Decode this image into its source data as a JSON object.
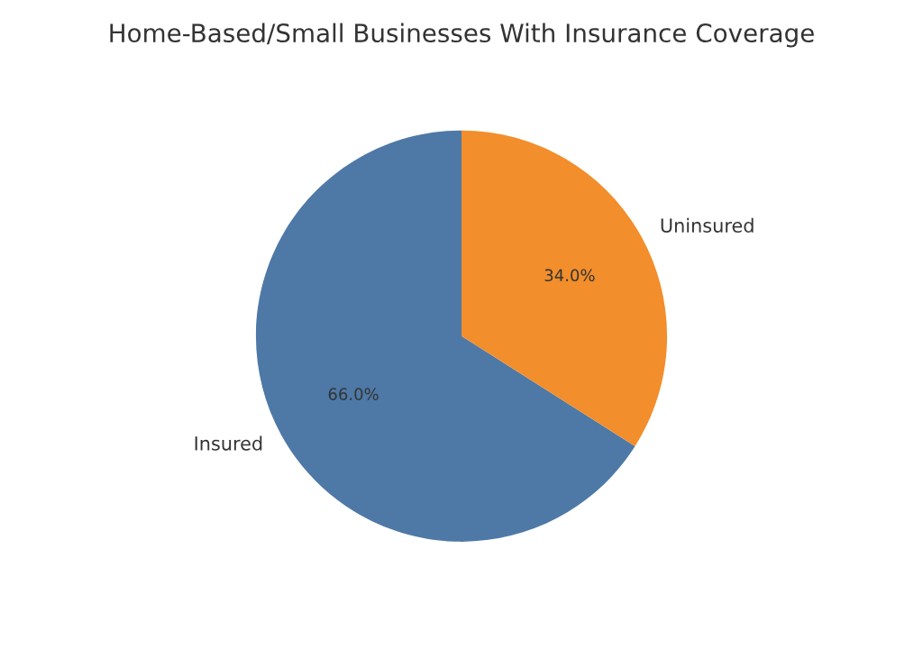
{
  "chart_data": {
    "type": "pie",
    "title": "Home-Based/Small Businesses With Insurance Coverage",
    "categories": [
      "Insured",
      "Uninsured"
    ],
    "values": [
      66,
      34
    ],
    "colors": [
      "#4e79a7",
      "#f28e2b"
    ],
    "value_labels": [
      "66.0%",
      "34.0%"
    ]
  }
}
